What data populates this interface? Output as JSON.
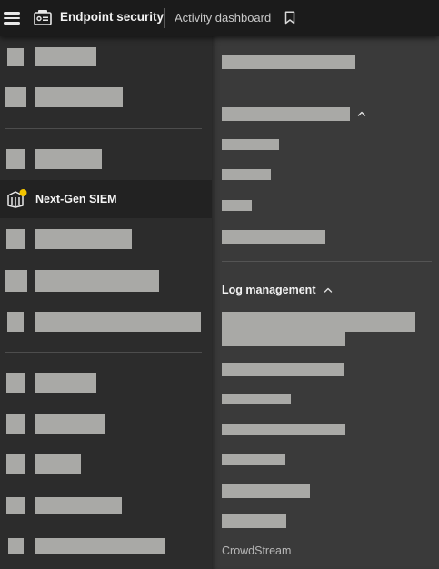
{
  "topbar": {
    "menu_icon": "hamburger-menu-icon",
    "app_icon": "endpoint-security-icon",
    "app_title": "Endpoint security",
    "page_title": "Activity dashboard",
    "bookmark_icon": "bookmark-icon"
  },
  "left_nav": {
    "active_item": {
      "label": "Next-Gen SIEM",
      "icon": "next-gen-siem-icon"
    }
  },
  "right_panel": {
    "section_1": {
      "chevron_icon": "chevron-up-icon"
    },
    "section_2": {
      "label": "Log management",
      "chevron_icon": "chevron-up-icon"
    },
    "footer_link": "CrowdStream"
  },
  "colors": {
    "topbar_bg": "#1b1b1b",
    "left_bg": "#2c2c2c",
    "right_bg": "#3a3a3a",
    "placeholder": "#a9a9a6",
    "active_row_bg": "#222222",
    "siem_accent": "#f2c400"
  }
}
